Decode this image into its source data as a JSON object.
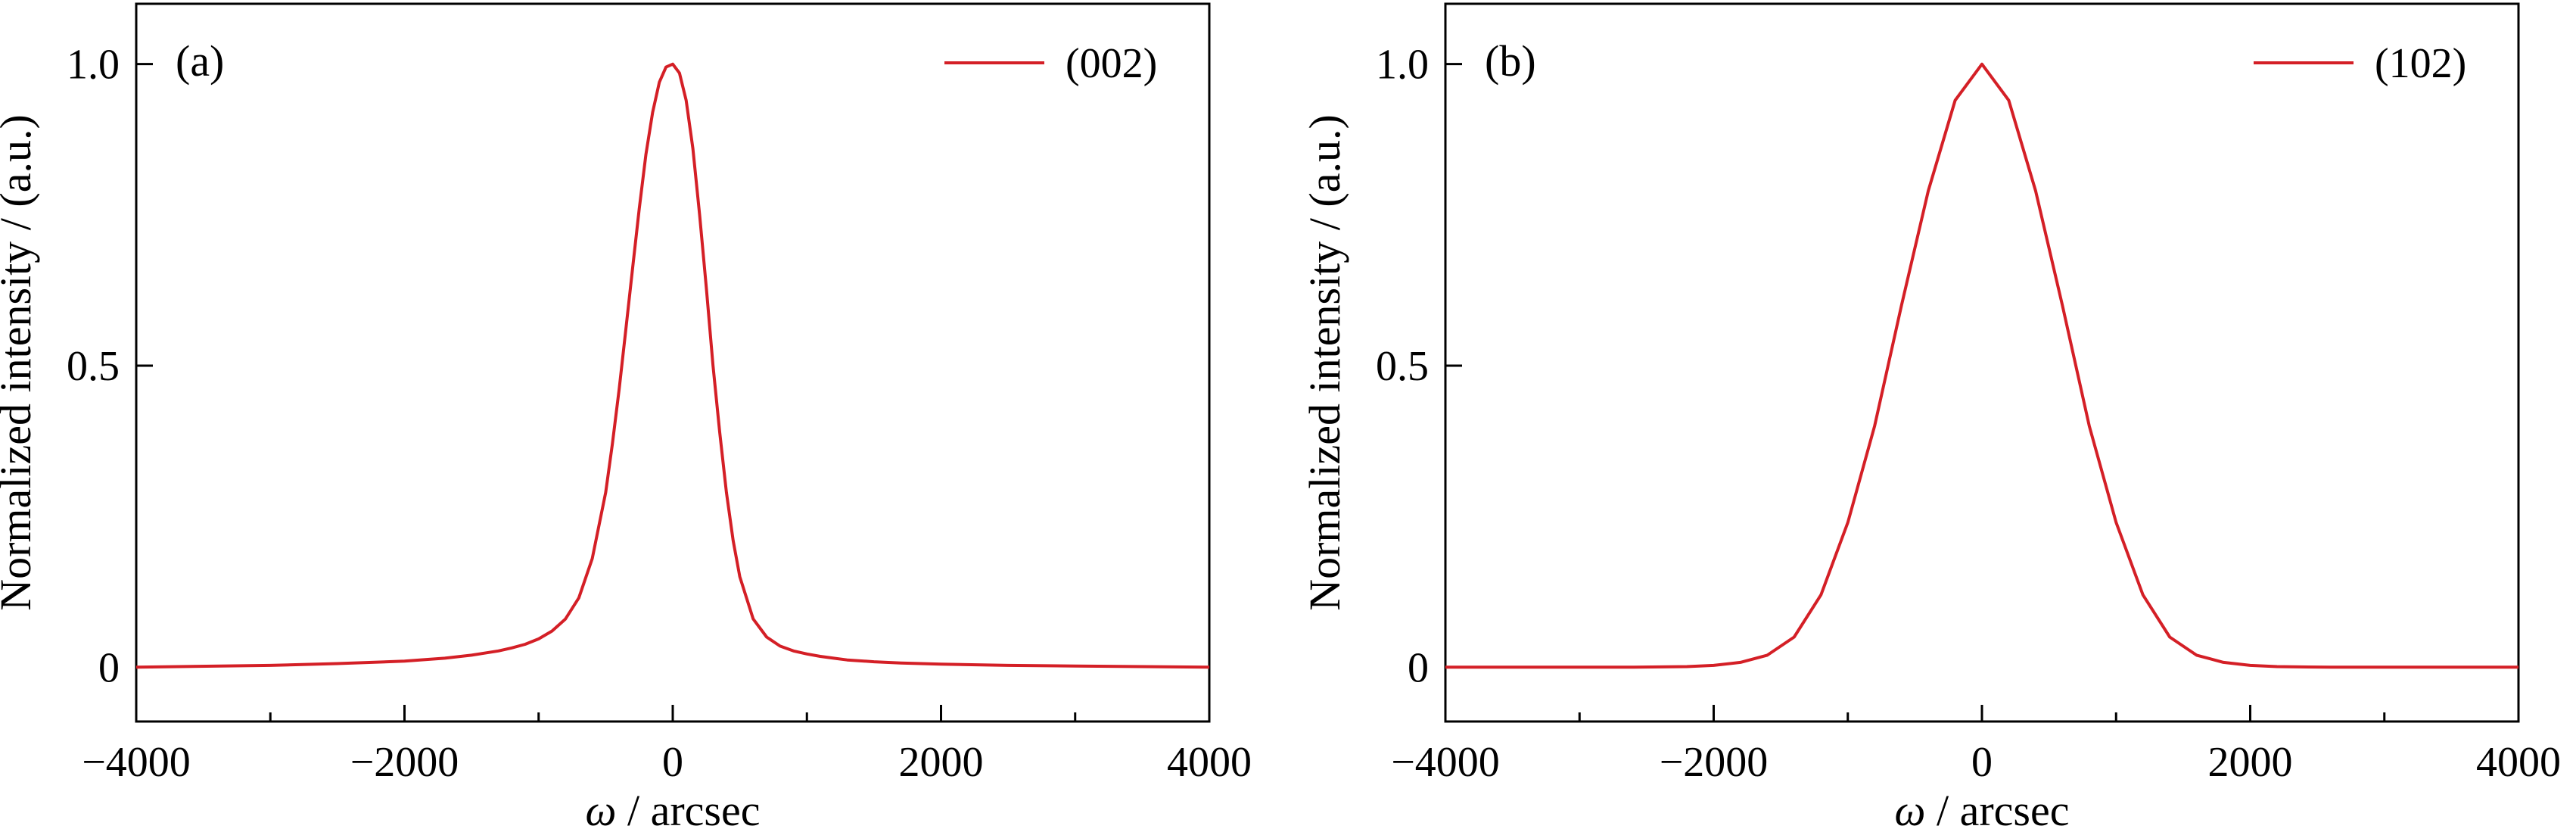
{
  "colors": {
    "series": "#d41f26",
    "axis": "#000000",
    "background": "#ffffff"
  },
  "chart_data": [
    {
      "type": "line",
      "panel_label": "(a)",
      "xlabel_symbol": "ω",
      "xlabel_rest": " / arcsec",
      "ylabel": "Normalized intensity / (a.u.)",
      "xlim": [
        -4000,
        4000
      ],
      "ylim": [
        -0.09,
        1.1
      ],
      "xticks": [
        -4000,
        -2000,
        0,
        2000,
        4000
      ],
      "xtick_labels": [
        "−4000",
        "−2000",
        "0",
        "2000",
        "4000"
      ],
      "xminor": [
        -3000,
        -1000,
        1000,
        3000
      ],
      "yticks": [
        0,
        0.5,
        1.0
      ],
      "ytick_labels": [
        "0",
        "0.5",
        "1.0"
      ],
      "legend_position": "top-right",
      "grid": false,
      "series": [
        {
          "name": "(002)",
          "x": [
            -4000,
            -3000,
            -2500,
            -2000,
            -1700,
            -1500,
            -1300,
            -1200,
            -1100,
            -1000,
            -900,
            -800,
            -700,
            -600,
            -500,
            -450,
            -400,
            -350,
            -300,
            -250,
            -200,
            -150,
            -100,
            -50,
            0,
            50,
            100,
            150,
            200,
            250,
            300,
            350,
            400,
            450,
            500,
            600,
            700,
            800,
            900,
            1000,
            1100,
            1200,
            1300,
            1500,
            1700,
            2000,
            2500,
            3000,
            4000
          ],
          "y": [
            0.0,
            0.003,
            0.006,
            0.01,
            0.015,
            0.02,
            0.027,
            0.032,
            0.038,
            0.047,
            0.06,
            0.08,
            0.115,
            0.18,
            0.29,
            0.37,
            0.46,
            0.56,
            0.66,
            0.76,
            0.85,
            0.92,
            0.97,
            0.995,
            1.0,
            0.985,
            0.94,
            0.86,
            0.75,
            0.63,
            0.5,
            0.39,
            0.29,
            0.21,
            0.15,
            0.08,
            0.05,
            0.035,
            0.027,
            0.022,
            0.018,
            0.015,
            0.012,
            0.009,
            0.007,
            0.005,
            0.003,
            0.002,
            0.0
          ]
        }
      ]
    },
    {
      "type": "line",
      "panel_label": "(b)",
      "xlabel_symbol": "ω",
      "xlabel_rest": " / arcsec",
      "ylabel": "Normalized intensity / (a.u.)",
      "xlim": [
        -4000,
        4000
      ],
      "ylim": [
        -0.09,
        1.1
      ],
      "xticks": [
        -4000,
        -2000,
        0,
        2000,
        4000
      ],
      "xtick_labels": [
        "−4000",
        "−2000",
        "0",
        "2000",
        "4000"
      ],
      "xminor": [
        -3000,
        -1000,
        1000,
        3000
      ],
      "yticks": [
        0,
        0.5,
        1.0
      ],
      "ytick_labels": [
        "0",
        "0.5",
        "1.0"
      ],
      "legend_position": "top-right",
      "grid": false,
      "series": [
        {
          "name": "(102)",
          "x": [
            -4000,
            -2600,
            -2200,
            -2000,
            -1800,
            -1600,
            -1400,
            -1200,
            -1000,
            -800,
            -600,
            -400,
            -200,
            0,
            200,
            400,
            600,
            800,
            1000,
            1200,
            1400,
            1600,
            1800,
            2000,
            2200,
            2600,
            4000
          ],
          "y": [
            0.0,
            0.0,
            0.001,
            0.003,
            0.008,
            0.02,
            0.05,
            0.12,
            0.24,
            0.4,
            0.6,
            0.79,
            0.94,
            1.0,
            0.94,
            0.79,
            0.6,
            0.4,
            0.24,
            0.12,
            0.05,
            0.02,
            0.008,
            0.003,
            0.001,
            0.0,
            0.0
          ]
        }
      ]
    }
  ]
}
